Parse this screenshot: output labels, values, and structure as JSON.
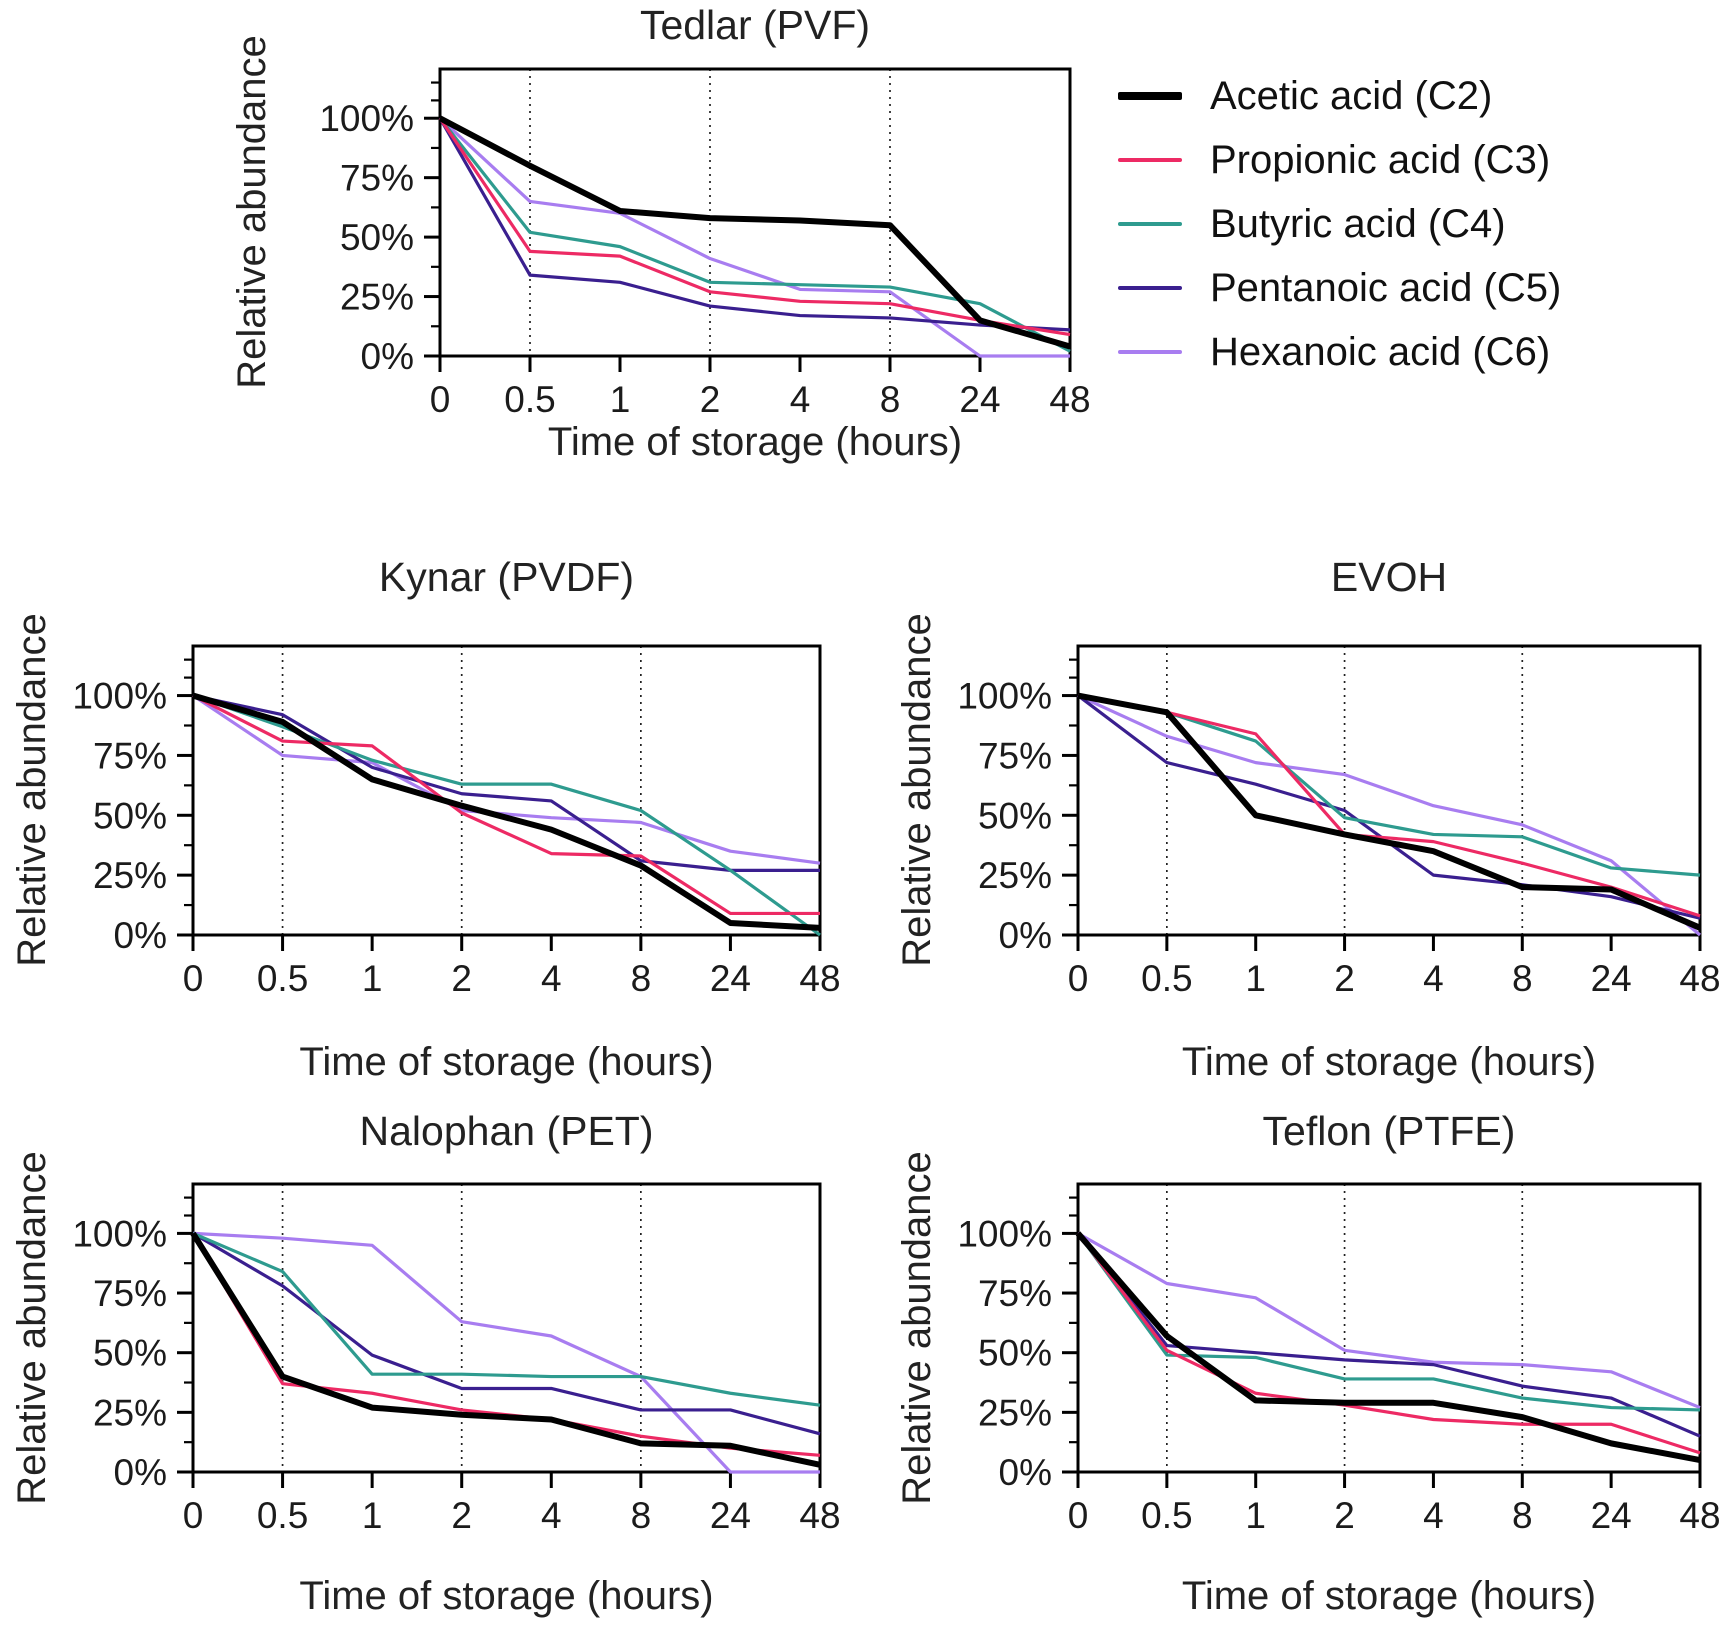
{
  "figure": {
    "xlabel": "Time of storage (hours)",
    "ylabel": "Relative abundance"
  },
  "legend": {
    "items": [
      {
        "label": "Acetic acid (C2)",
        "color": "#000000",
        "thick": true
      },
      {
        "label": "Propionic acid (C3)",
        "color": "#ED2A64",
        "thick": false
      },
      {
        "label": "Butyric acid (C4)",
        "color": "#2E9B8F",
        "thick": false
      },
      {
        "label": "Pentanoic acid (C5)",
        "color": "#3A1F8F",
        "thick": false
      },
      {
        "label": "Hexanoic acid (C6)",
        "color": "#A87DF0",
        "thick": false
      }
    ]
  },
  "chart_data": [
    {
      "type": "line",
      "title": "Tedlar (PVF)",
      "xlabel": "Time of storage (hours)",
      "ylabel": "Relative abundance",
      "x_categories": [
        "0",
        "0.5",
        "1",
        "2",
        "4",
        "8",
        "24",
        "48"
      ],
      "y_tick_labels": [
        "0%",
        "25%",
        "50%",
        "75%",
        "100%"
      ],
      "ylim": [
        0,
        100
      ],
      "grid_at": [
        "0.5",
        "2",
        "8"
      ],
      "legend_position": "right-of-plot",
      "series": [
        {
          "name": "Acetic acid (C2)",
          "color": "#000000",
          "thick": true,
          "values": [
            100,
            80,
            61,
            58,
            57,
            55,
            15,
            4
          ]
        },
        {
          "name": "Propionic acid (C3)",
          "color": "#ED2A64",
          "thick": false,
          "values": [
            100,
            44,
            42,
            27,
            23,
            22,
            15,
            9
          ]
        },
        {
          "name": "Butyric acid (C4)",
          "color": "#2E9B8F",
          "thick": false,
          "values": [
            100,
            52,
            46,
            31,
            30,
            29,
            22,
            2
          ]
        },
        {
          "name": "Pentanoic acid (C5)",
          "color": "#3A1F8F",
          "thick": false,
          "values": [
            100,
            34,
            31,
            21,
            17,
            16,
            13,
            11
          ]
        },
        {
          "name": "Hexanoic acid (C6)",
          "color": "#A87DF0",
          "thick": false,
          "values": [
            100,
            65,
            60,
            41,
            28,
            27,
            0,
            0
          ]
        }
      ]
    },
    {
      "type": "line",
      "title": "Kynar (PVDF)",
      "xlabel": "Time of storage (hours)",
      "ylabel": "Relative abundance",
      "x_categories": [
        "0",
        "0.5",
        "1",
        "2",
        "4",
        "8",
        "24",
        "48"
      ],
      "y_tick_labels": [
        "0%",
        "25%",
        "50%",
        "75%",
        "100%"
      ],
      "ylim": [
        0,
        100
      ],
      "grid_at": [
        "0.5",
        "2",
        "8"
      ],
      "series": [
        {
          "name": "Acetic acid (C2)",
          "color": "#000000",
          "thick": true,
          "values": [
            100,
            89,
            65,
            54,
            44,
            29,
            5,
            3
          ]
        },
        {
          "name": "Propionic acid (C3)",
          "color": "#ED2A64",
          "thick": false,
          "values": [
            100,
            81,
            79,
            51,
            34,
            33,
            9,
            9
          ]
        },
        {
          "name": "Butyric acid (C4)",
          "color": "#2E9B8F",
          "thick": false,
          "values": [
            100,
            87,
            73,
            63,
            63,
            52,
            27,
            0
          ]
        },
        {
          "name": "Pentanoic acid (C5)",
          "color": "#3A1F8F",
          "thick": false,
          "values": [
            100,
            92,
            70,
            59,
            56,
            31,
            27,
            27
          ]
        },
        {
          "name": "Hexanoic acid (C6)",
          "color": "#A87DF0",
          "thick": false,
          "values": [
            100,
            75,
            72,
            52,
            49,
            47,
            35,
            30
          ]
        }
      ]
    },
    {
      "type": "line",
      "title": "EVOH",
      "xlabel": "Time of storage (hours)",
      "ylabel": "Relative abundance",
      "x_categories": [
        "0",
        "0.5",
        "1",
        "2",
        "4",
        "8",
        "24",
        "48"
      ],
      "y_tick_labels": [
        "0%",
        "25%",
        "50%",
        "75%",
        "100%"
      ],
      "ylim": [
        0,
        100
      ],
      "grid_at": [
        "0.5",
        "2",
        "8"
      ],
      "series": [
        {
          "name": "Acetic acid (C2)",
          "color": "#000000",
          "thick": true,
          "values": [
            100,
            93,
            50,
            42,
            35,
            20,
            19,
            3
          ]
        },
        {
          "name": "Propionic acid (C3)",
          "color": "#ED2A64",
          "thick": false,
          "values": [
            100,
            93,
            84,
            42,
            39,
            30,
            20,
            8
          ]
        },
        {
          "name": "Butyric acid (C4)",
          "color": "#2E9B8F",
          "thick": false,
          "values": [
            100,
            93,
            81,
            49,
            42,
            41,
            28,
            25
          ]
        },
        {
          "name": "Pentanoic acid (C5)",
          "color": "#3A1F8F",
          "thick": false,
          "values": [
            100,
            72,
            63,
            52,
            25,
            21,
            16,
            7
          ]
        },
        {
          "name": "Hexanoic acid (C6)",
          "color": "#A87DF0",
          "thick": false,
          "values": [
            100,
            83,
            72,
            67,
            54,
            46,
            31,
            0
          ]
        }
      ]
    },
    {
      "type": "line",
      "title": "Nalophan (PET)",
      "xlabel": "Time of storage (hours)",
      "ylabel": "Relative abundance",
      "x_categories": [
        "0",
        "0.5",
        "1",
        "2",
        "4",
        "8",
        "24",
        "48"
      ],
      "y_tick_labels": [
        "0%",
        "25%",
        "50%",
        "75%",
        "100%"
      ],
      "ylim": [
        0,
        100
      ],
      "grid_at": [
        "0.5",
        "2",
        "8"
      ],
      "series": [
        {
          "name": "Acetic acid (C2)",
          "color": "#000000",
          "thick": true,
          "values": [
            100,
            40,
            27,
            24,
            22,
            12,
            11,
            3
          ]
        },
        {
          "name": "Propionic acid (C3)",
          "color": "#ED2A64",
          "thick": false,
          "values": [
            100,
            37,
            33,
            26,
            22,
            15,
            10,
            7
          ]
        },
        {
          "name": "Butyric acid (C4)",
          "color": "#2E9B8F",
          "thick": false,
          "values": [
            100,
            84,
            41,
            41,
            40,
            40,
            33,
            28
          ]
        },
        {
          "name": "Pentanoic acid (C5)",
          "color": "#3A1F8F",
          "thick": false,
          "values": [
            100,
            78,
            49,
            35,
            35,
            26,
            26,
            16
          ]
        },
        {
          "name": "Hexanoic acid (C6)",
          "color": "#A87DF0",
          "thick": false,
          "values": [
            100,
            98,
            95,
            63,
            57,
            40,
            0,
            0
          ]
        }
      ]
    },
    {
      "type": "line",
      "title": "Teflon (PTFE)",
      "xlabel": "Time of storage (hours)",
      "ylabel": "Relative abundance",
      "x_categories": [
        "0",
        "0.5",
        "1",
        "2",
        "4",
        "8",
        "24",
        "48"
      ],
      "y_tick_labels": [
        "0%",
        "25%",
        "50%",
        "75%",
        "100%"
      ],
      "ylim": [
        0,
        100
      ],
      "grid_at": [
        "0.5",
        "2",
        "8"
      ],
      "series": [
        {
          "name": "Acetic acid (C2)",
          "color": "#000000",
          "thick": true,
          "values": [
            100,
            57,
            30,
            29,
            29,
            23,
            12,
            5
          ]
        },
        {
          "name": "Propionic acid (C3)",
          "color": "#ED2A64",
          "thick": false,
          "values": [
            100,
            51,
            33,
            28,
            22,
            20,
            20,
            8
          ]
        },
        {
          "name": "Butyric acid (C4)",
          "color": "#2E9B8F",
          "thick": false,
          "values": [
            100,
            49,
            48,
            39,
            39,
            31,
            27,
            26
          ]
        },
        {
          "name": "Pentanoic acid (C5)",
          "color": "#3A1F8F",
          "thick": false,
          "values": [
            100,
            53,
            50,
            47,
            45,
            36,
            31,
            15
          ]
        },
        {
          "name": "Hexanoic acid (C6)",
          "color": "#A87DF0",
          "thick": false,
          "values": [
            100,
            79,
            73,
            51,
            46,
            45,
            42,
            27
          ]
        }
      ]
    }
  ]
}
